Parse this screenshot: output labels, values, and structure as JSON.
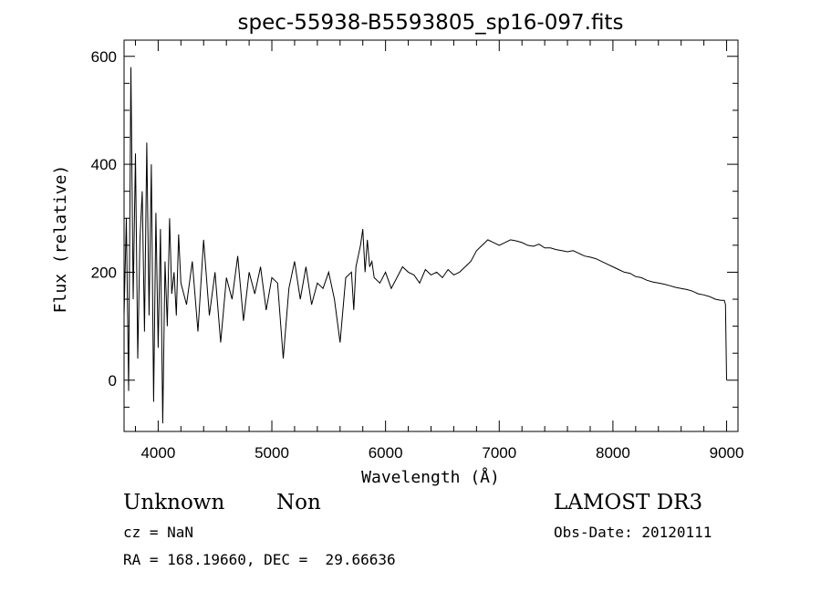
{
  "chart_data": {
    "type": "line",
    "title": "spec-55938-B5593805_sp16-097.fits",
    "xlabel": "Wavelength (Å)",
    "ylabel": "Flux (relative)",
    "xlim": [
      3700,
      9100
    ],
    "ylim": [
      -95,
      630
    ],
    "xticks": [
      4000,
      5000,
      6000,
      7000,
      8000,
      9000
    ],
    "yticks": [
      0,
      200,
      400,
      600
    ],
    "grid": false,
    "series": [
      {
        "x": [
          3700,
          3720,
          3740,
          3760,
          3780,
          3800,
          3820,
          3840,
          3860,
          3880,
          3900,
          3920,
          3940,
          3960,
          3980,
          4000,
          4020,
          4040,
          4060,
          4080,
          4100,
          4120,
          4140,
          4160,
          4180,
          4200,
          4250,
          4300,
          4350,
          4400,
          4450,
          4500,
          4550,
          4600,
          4650,
          4700,
          4750,
          4800,
          4850,
          4900,
          4950,
          5000,
          5050,
          5100,
          5150,
          5200,
          5250,
          5300,
          5350,
          5400,
          5450,
          5500,
          5550,
          5600,
          5650,
          5700,
          5720,
          5740,
          5760,
          5780,
          5800,
          5820,
          5840,
          5860,
          5880,
          5900,
          5950,
          6000,
          6050,
          6100,
          6150,
          6200,
          6250,
          6300,
          6350,
          6400,
          6450,
          6500,
          6550,
          6600,
          6650,
          6700,
          6750,
          6800,
          6850,
          6900,
          6950,
          7000,
          7050,
          7100,
          7150,
          7200,
          7250,
          7300,
          7350,
          7400,
          7450,
          7500,
          7550,
          7600,
          7650,
          7700,
          7750,
          7800,
          7850,
          7900,
          7950,
          8000,
          8050,
          8100,
          8150,
          8200,
          8250,
          8300,
          8350,
          8400,
          8450,
          8500,
          8550,
          8600,
          8650,
          8700,
          8750,
          8800,
          8850,
          8900,
          8950,
          8980,
          8990,
          9000
        ],
        "y": [
          120,
          300,
          -20,
          580,
          150,
          420,
          40,
          260,
          350,
          90,
          440,
          120,
          400,
          -40,
          310,
          60,
          280,
          -80,
          220,
          100,
          300,
          160,
          200,
          120,
          270,
          180,
          140,
          220,
          90,
          260,
          120,
          200,
          70,
          190,
          150,
          230,
          110,
          200,
          160,
          210,
          130,
          190,
          180,
          40,
          170,
          220,
          150,
          210,
          140,
          180,
          170,
          200,
          150,
          70,
          190,
          200,
          130,
          210,
          230,
          250,
          280,
          200,
          260,
          210,
          220,
          190,
          180,
          200,
          170,
          190,
          210,
          200,
          195,
          180,
          205,
          195,
          200,
          190,
          205,
          195,
          200,
          210,
          220,
          240,
          250,
          260,
          255,
          250,
          255,
          260,
          258,
          255,
          250,
          248,
          252,
          245,
          245,
          242,
          240,
          238,
          240,
          235,
          230,
          228,
          225,
          220,
          215,
          210,
          205,
          200,
          198,
          192,
          190,
          185,
          182,
          180,
          178,
          175,
          172,
          170,
          168,
          165,
          160,
          158,
          155,
          150,
          148,
          148,
          140,
          0
        ]
      }
    ]
  },
  "annotations": {
    "object_class": "Unknown",
    "object_subclass": "Non",
    "survey": "LAMOST DR3",
    "cz": "cz = NaN",
    "obs_date": "Obs-Date: 20120111",
    "coords": "RA = 168.19660, DEC =  29.66636"
  }
}
